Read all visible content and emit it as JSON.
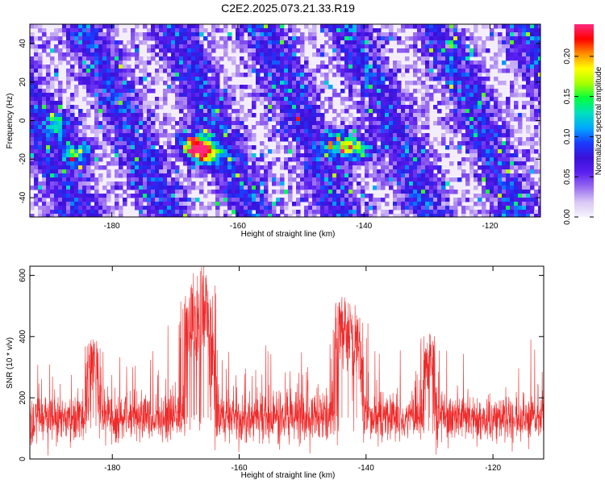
{
  "title": "C2E2.2025.073.21.33.R19",
  "colors": {
    "snr_line": "#ef2a2a",
    "colormap": [
      "#f7f3fd",
      "#d9c8f5",
      "#9a6cf0",
      "#5a1ff0",
      "#3a10d8",
      "#1a3cff",
      "#00a8ff",
      "#00e0c0",
      "#00ff40",
      "#a8ff00",
      "#ffff00",
      "#ff9000",
      "#ff0000",
      "#ff2a80"
    ]
  },
  "chart_data": [
    {
      "type": "heatmap",
      "xlabel": "Height of straight line (km)",
      "ylabel": "Frequency (Hz)",
      "xlim": [
        -193,
        -112
      ],
      "ylim": [
        -50,
        50
      ],
      "x_ticks": [
        "-180",
        "-160",
        "-140",
        "-120"
      ],
      "x_tick_values": [
        -180,
        -160,
        -140,
        -120
      ],
      "y_ticks": [
        "-40",
        "-20",
        "0",
        "20",
        "40"
      ],
      "y_tick_values": [
        -40,
        -20,
        0,
        20,
        40
      ],
      "colorbar": {
        "label": "Normalized spectral amplitude",
        "range": [
          0,
          0.24
        ],
        "ticks": [
          "0.00",
          "0.05",
          "0.10",
          "0.15",
          "0.20"
        ],
        "tick_values": [
          0.0,
          0.05,
          0.1,
          0.15,
          0.2
        ]
      },
      "hotspots": [
        {
          "x": -185.5,
          "y": -15,
          "amplitude": 0.14
        },
        {
          "x": -188.5,
          "y": 0,
          "amplitude": 0.12
        },
        {
          "x": -167.5,
          "y": -12,
          "amplitude": 0.23
        },
        {
          "x": -165.5,
          "y": -16,
          "amplitude": 0.2
        },
        {
          "x": -143.5,
          "y": -10,
          "amplitude": 0.18
        },
        {
          "x": -141,
          "y": -15,
          "amplitude": 0.15
        }
      ]
    },
    {
      "type": "line",
      "xlabel": "Height of straight line (km)",
      "ylabel": "SNR (10 * v/v)",
      "xlim": [
        -193,
        -112
      ],
      "ylim": [
        0,
        630
      ],
      "x_ticks": [
        "-180",
        "-160",
        "-140",
        "-120"
      ],
      "x_tick_values": [
        -180,
        -160,
        -140,
        -120
      ],
      "y_ticks": [
        "0",
        "200",
        "400",
        "600"
      ],
      "y_tick_values": [
        0,
        200,
        400,
        600
      ],
      "baseline_mean": 135,
      "peaks": [
        {
          "x": -167.5,
          "y": 570
        },
        {
          "x": -165.6,
          "y": 630
        },
        {
          "x": -164.9,
          "y": 420
        },
        {
          "x": -143.8,
          "y": 530
        },
        {
          "x": -142.8,
          "y": 510
        },
        {
          "x": -141.5,
          "y": 470
        },
        {
          "x": -183,
          "y": 390
        },
        {
          "x": -130,
          "y": 410
        }
      ]
    }
  ]
}
